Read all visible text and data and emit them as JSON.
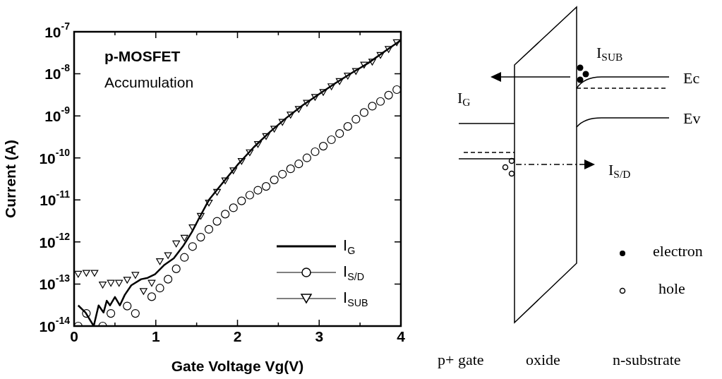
{
  "chart_data": {
    "type": "line",
    "xlabel": "Gate Voltage Vg(V)",
    "ylabel": "Current (A)",
    "log": true,
    "grid": false,
    "legend": "bottom right",
    "xlim": [
      0,
      4
    ],
    "xticks": [
      0,
      {
        "value": 0.5,
        "label": null
      },
      1,
      {
        "value": 1.5,
        "label": null
      },
      2,
      {
        "value": 2.5,
        "label": null
      },
      3,
      {
        "value": 3.5,
        "label": null
      },
      4
    ],
    "ylim": [
      1e-14,
      1e-07
    ],
    "yticks": [
      {
        "value": 1e-14,
        "label": "10$^{-14}$"
      },
      {
        "value": 1e-13,
        "label": "10$^{-13}$"
      },
      {
        "value": 1e-12,
        "label": "10$^{-12}$"
      },
      {
        "value": 1e-11,
        "label": "10$^{-11}$"
      },
      {
        "value": 1e-10,
        "label": "10$^{-10}$"
      },
      {
        "value": 1e-09,
        "label": "10$^{-9}$"
      },
      {
        "value": 1e-08,
        "label": "10$^{-8}$"
      },
      {
        "value": 1e-07,
        "label": "10$^{-7}$"
      }
    ],
    "annotations": [
      "p-MOSFET",
      "Accumulation",
      "I$_{SUB}$",
      "Ec",
      "Ev",
      "I$_{G}$",
      "I$_{S/D}$",
      "electron",
      "hole",
      "p+ gate",
      "oxide",
      "n-substrate"
    ],
    "series": [
      {
        "name": "I$_{G}$",
        "marker": "none",
        "color": "#000000",
        "x": [
          0.05,
          0.14,
          0.24,
          0.3,
          0.36,
          0.4,
          0.44,
          0.5,
          0.56,
          0.62,
          0.7,
          0.82,
          0.9,
          0.99,
          1.1,
          1.22,
          1.34,
          1.44,
          1.54,
          1.65,
          1.8,
          2.0,
          2.2,
          2.4,
          2.6,
          2.8,
          3.0,
          3.2,
          3.4,
          3.6,
          3.8,
          4.0
        ],
        "values": [
          3.1e-14,
          2.1e-14,
          1e-14,
          3.1e-14,
          2.1e-14,
          4e-14,
          3.1e-14,
          4.9e-14,
          3.1e-14,
          5.5e-14,
          9.3e-14,
          1.3e-13,
          1.4e-13,
          1.7e-13,
          2.8e-13,
          4.1e-13,
          8.3e-13,
          1.7e-12,
          4e-12,
          1e-11,
          2.3e-11,
          6.8e-11,
          1.8e-10,
          4.2e-10,
          9e-10,
          1.8e-09,
          3.3e-09,
          6e-09,
          1.05e-08,
          1.8e-08,
          3.4e-08,
          6.3e-08
        ]
      },
      {
        "name": "I$_{S/D}$",
        "type": "scatter",
        "marker": "circle",
        "color": "#000000",
        "x": [
          0.05,
          0.15,
          0.35,
          0.45,
          0.65,
          0.75,
          0.95,
          1.05,
          1.15,
          1.25,
          1.35,
          1.45,
          1.55,
          1.65,
          1.75,
          1.85,
          1.95,
          2.05,
          2.15,
          2.25,
          2.35,
          2.45,
          2.55,
          2.65,
          2.75,
          2.85,
          2.95,
          3.05,
          3.15,
          3.25,
          3.35,
          3.45,
          3.55,
          3.65,
          3.75,
          3.85,
          3.95
        ],
        "values": [
          1e-14,
          2e-14,
          1e-14,
          2e-14,
          3e-14,
          2e-14,
          5e-14,
          8e-14,
          1.3e-13,
          2.3e-13,
          4.3e-13,
          7.8e-13,
          1.3e-12,
          2e-12,
          3.1e-12,
          4.6e-12,
          6.5e-12,
          9.5e-12,
          1.3e-11,
          1.7e-11,
          2.1e-11,
          3e-11,
          4.1e-11,
          5.5e-11,
          7.2e-11,
          1e-10,
          1.4e-10,
          1.9e-10,
          2.7e-10,
          3.8e-10,
          5.6e-10,
          8.3e-10,
          1.2e-09,
          1.7e-09,
          2.2e-09,
          3.1e-09,
          4.2e-09
        ]
      },
      {
        "name": "I$_{SUB}$",
        "type": "scatter",
        "marker": "triangle",
        "color": "#000000",
        "x": [
          0.05,
          0.15,
          0.25,
          0.35,
          0.45,
          0.55,
          0.65,
          0.75,
          0.85,
          0.95,
          1.05,
          1.15,
          1.25,
          1.35,
          1.45,
          1.55,
          1.65,
          1.75,
          1.85,
          1.95,
          2.05,
          2.15,
          2.25,
          2.35,
          2.45,
          2.55,
          2.65,
          2.75,
          2.85,
          2.95,
          3.05,
          3.15,
          3.25,
          3.35,
          3.45,
          3.55,
          3.65,
          3.75,
          3.85,
          3.95
        ],
        "values": [
          1.8e-13,
          1.9e-13,
          1.9e-13,
          1e-13,
          1.1e-13,
          1.1e-13,
          1.3e-13,
          1.7e-13,
          7e-14,
          1.1e-13,
          3.6e-13,
          5e-13,
          9.5e-13,
          1.3e-12,
          2.3e-12,
          4.3e-12,
          8.9e-12,
          1.6e-11,
          3e-11,
          5.2e-11,
          8.7e-11,
          1.4e-10,
          2.2e-10,
          3.4e-10,
          5.1e-10,
          7.4e-10,
          1.1e-09,
          1.5e-09,
          2.1e-09,
          2.9e-09,
          3.8e-09,
          5.2e-09,
          6.9e-09,
          9.3e-09,
          1.2e-08,
          1.7e-08,
          2e-08,
          2.9e-08,
          4e-08,
          5.8e-08
        ]
      }
    ]
  }
}
